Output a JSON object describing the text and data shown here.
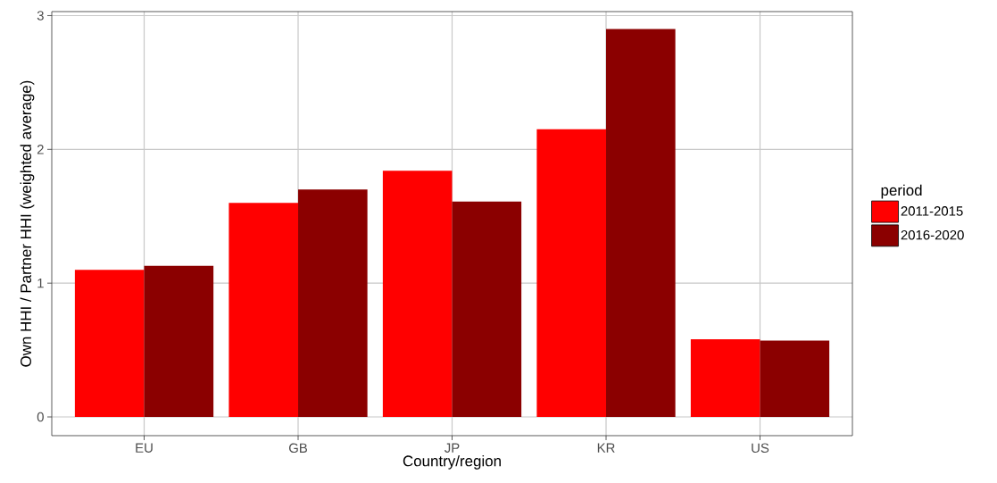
{
  "chart_data": {
    "type": "bar",
    "xlabel": "Country/region",
    "ylabel": "Own HHI / Partner HHI (weighted average)",
    "legend_title": "period",
    "categories": [
      "EU",
      "GB",
      "JP",
      "KR",
      "US"
    ],
    "series": [
      {
        "name": "2011-2015",
        "color": "#ff0000",
        "values": [
          1.1,
          1.6,
          1.84,
          2.15,
          0.58
        ]
      },
      {
        "name": "2016-2020",
        "color": "#8b0000",
        "values": [
          1.13,
          1.7,
          1.61,
          2.9,
          0.57
        ]
      }
    ],
    "ylim": [
      -0.14,
      3.03
    ],
    "yticks": [
      0,
      1,
      2,
      3
    ],
    "grid": true,
    "legend": "right"
  }
}
